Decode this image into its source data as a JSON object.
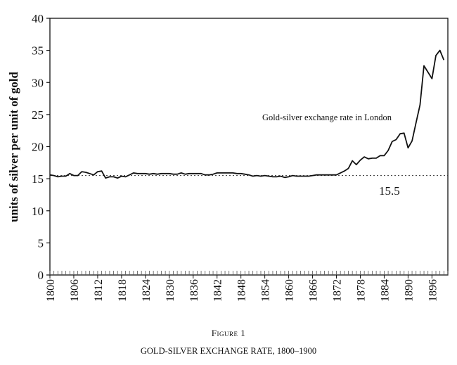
{
  "chart_data": {
    "type": "line",
    "ylabel": "units of silver per unit of gold",
    "xlabel": "",
    "xlim": [
      1800,
      1900
    ],
    "ylim": [
      0,
      40
    ],
    "y_ticks": [
      0,
      5,
      10,
      15,
      20,
      25,
      30,
      35,
      40
    ],
    "x_tick_labels": [
      1800,
      1806,
      1812,
      1818,
      1824,
      1830,
      1836,
      1842,
      1848,
      1854,
      1860,
      1866,
      1872,
      1878,
      1884,
      1890,
      1896
    ],
    "grid": false,
    "series": [
      {
        "name": "Gold-silver exchange rate in London",
        "x": [
          1800,
          1801,
          1802,
          1803,
          1804,
          1805,
          1806,
          1807,
          1808,
          1809,
          1810,
          1811,
          1812,
          1813,
          1814,
          1815,
          1816,
          1817,
          1818,
          1819,
          1820,
          1821,
          1822,
          1823,
          1824,
          1825,
          1826,
          1827,
          1828,
          1829,
          1830,
          1831,
          1832,
          1833,
          1834,
          1835,
          1836,
          1837,
          1838,
          1839,
          1840,
          1841,
          1842,
          1843,
          1844,
          1845,
          1846,
          1847,
          1848,
          1849,
          1850,
          1851,
          1852,
          1853,
          1854,
          1855,
          1856,
          1857,
          1858,
          1859,
          1860,
          1861,
          1862,
          1863,
          1864,
          1865,
          1866,
          1867,
          1868,
          1869,
          1870,
          1871,
          1872,
          1873,
          1874,
          1875,
          1876,
          1877,
          1878,
          1879,
          1880,
          1881,
          1882,
          1883,
          1884,
          1885,
          1886,
          1887,
          1888,
          1889,
          1890,
          1891,
          1892,
          1893,
          1894,
          1895,
          1896,
          1897,
          1898,
          1899
        ],
        "y": [
          15.6,
          15.5,
          15.3,
          15.4,
          15.4,
          15.8,
          15.5,
          15.5,
          16.1,
          16.0,
          15.8,
          15.6,
          16.1,
          16.2,
          15.1,
          15.3,
          15.3,
          15.1,
          15.4,
          15.3,
          15.6,
          15.9,
          15.8,
          15.8,
          15.8,
          15.7,
          15.8,
          15.7,
          15.8,
          15.8,
          15.8,
          15.7,
          15.7,
          15.9,
          15.7,
          15.8,
          15.8,
          15.8,
          15.8,
          15.6,
          15.6,
          15.7,
          15.9,
          15.9,
          15.9,
          15.9,
          15.9,
          15.8,
          15.8,
          15.7,
          15.6,
          15.4,
          15.5,
          15.4,
          15.5,
          15.4,
          15.3,
          15.3,
          15.4,
          15.2,
          15.3,
          15.5,
          15.4,
          15.4,
          15.4,
          15.4,
          15.5,
          15.6,
          15.6,
          15.6,
          15.6,
          15.6,
          15.6,
          15.9,
          16.2,
          16.6,
          17.8,
          17.2,
          17.9,
          18.4,
          18.1,
          18.2,
          18.2,
          18.6,
          18.6,
          19.4,
          20.8,
          21.1,
          22.0,
          22.1,
          19.8,
          20.9,
          23.7,
          26.5,
          32.6,
          31.6,
          30.6,
          34.2,
          35.0,
          33.5
        ]
      }
    ],
    "annotations": [
      {
        "text": "15.5",
        "y": 15.5,
        "style": "dashed reference line"
      }
    ]
  },
  "figure": {
    "label": "Figure 1",
    "title": "GOLD-SILVER EXCHANGE RATE, 1800–1900"
  }
}
